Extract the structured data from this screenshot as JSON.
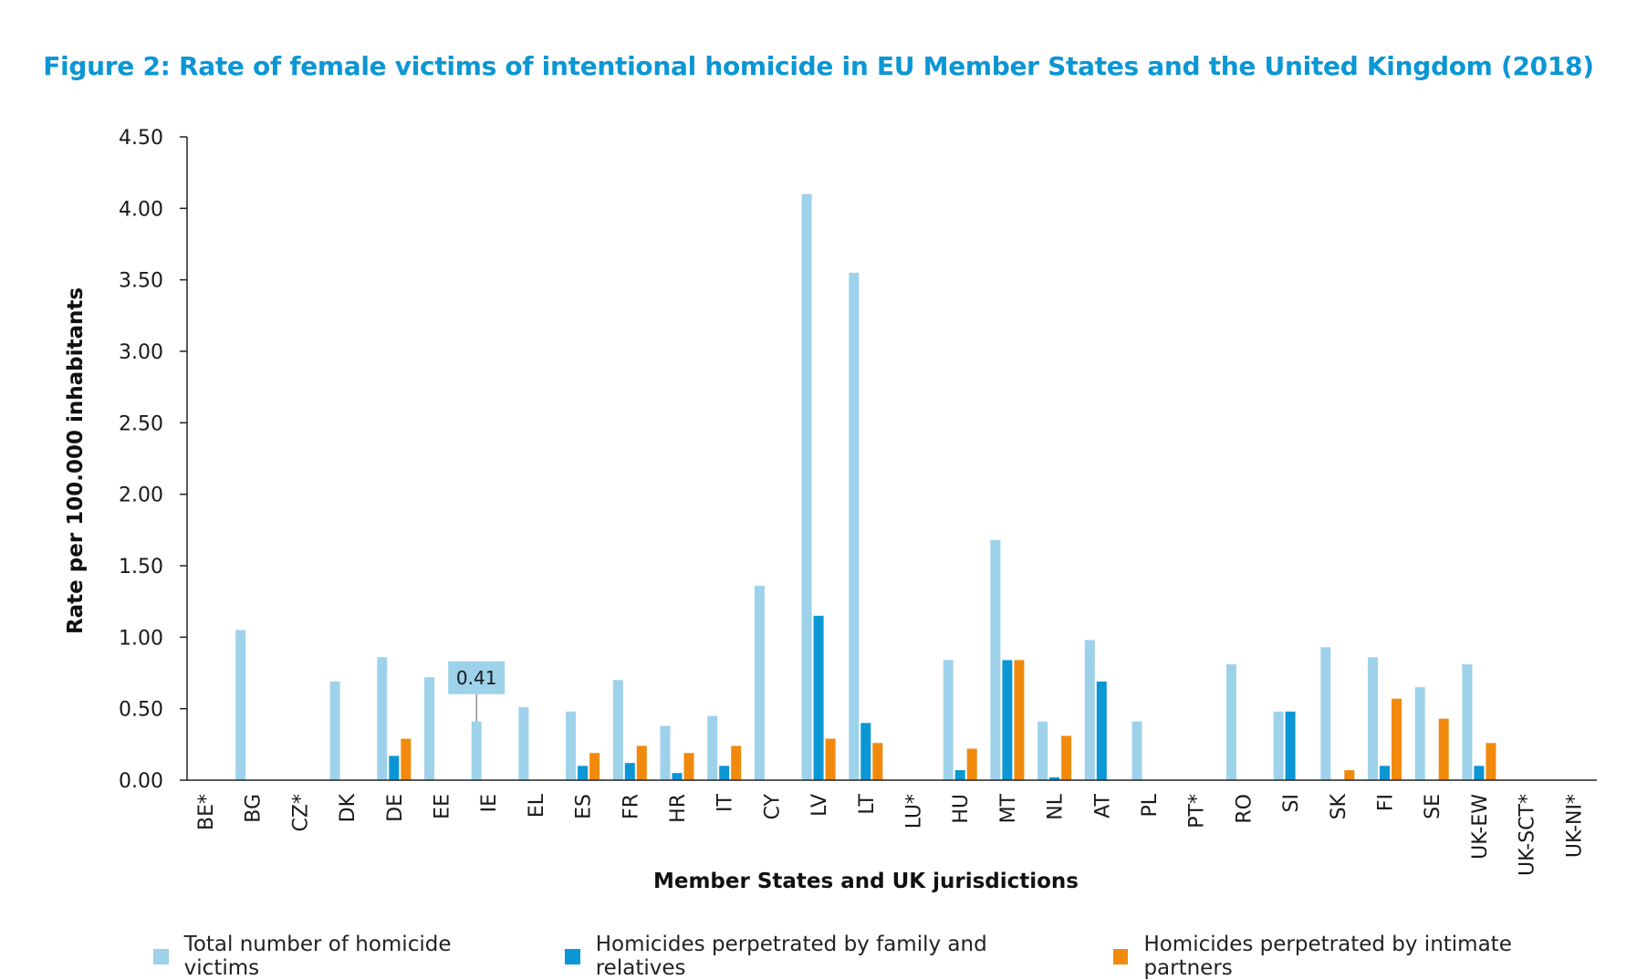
{
  "chart_data": {
    "type": "bar",
    "title": "Figure 2: Rate of female victims of intentional homicide in EU Member States and the United Kingdom (2018)",
    "xlabel": "Member States and UK jurisdictions",
    "ylabel": "Rate per 100.000 inhabitants",
    "ylim": [
      0,
      4.5
    ],
    "yticks": [
      "0.00",
      "0.50",
      "1.00",
      "1.50",
      "2.00",
      "2.50",
      "3.00",
      "3.50",
      "4.00",
      "4.50"
    ],
    "grid": false,
    "legend_position": "bottom",
    "categories": [
      "BE*",
      "BG",
      "CZ*",
      "DK",
      "DE",
      "EE",
      "IE",
      "EL",
      "ES",
      "FR",
      "HR",
      "IT",
      "CY",
      "LV",
      "LT",
      "LU*",
      "HU",
      "MT",
      "NL",
      "AT",
      "PL",
      "PT*",
      "RO",
      "SI",
      "SK",
      "FI",
      "SE",
      "UK-EW",
      "UK-SCT*",
      "UK-NI*"
    ],
    "series": [
      {
        "name": "Total number of homicide victims",
        "color": "#9dd2ea",
        "values": [
          null,
          1.05,
          null,
          0.69,
          0.86,
          0.72,
          0.41,
          0.51,
          0.48,
          0.7,
          0.38,
          0.45,
          1.36,
          4.1,
          3.55,
          null,
          0.84,
          1.68,
          0.41,
          0.98,
          0.41,
          null,
          0.81,
          0.48,
          0.93,
          0.86,
          0.65,
          0.81,
          null,
          null
        ]
      },
      {
        "name": "Homicides perpetrated by family and relatives",
        "color": "#0b96d4",
        "values": [
          null,
          null,
          null,
          null,
          0.17,
          null,
          null,
          null,
          0.1,
          0.12,
          0.05,
          0.1,
          null,
          1.15,
          0.4,
          null,
          0.07,
          0.84,
          0.02,
          0.69,
          null,
          null,
          null,
          0.48,
          null,
          0.1,
          null,
          0.1,
          null,
          null
        ]
      },
      {
        "name": "Homicides perpetrated by intimate partners",
        "color": "#f18a0c",
        "values": [
          null,
          null,
          null,
          null,
          0.29,
          null,
          null,
          null,
          0.19,
          0.24,
          0.19,
          0.24,
          null,
          0.29,
          0.26,
          null,
          0.22,
          0.84,
          0.31,
          null,
          null,
          null,
          null,
          null,
          0.07,
          0.57,
          0.43,
          0.26,
          null,
          null
        ]
      }
    ],
    "annotations": [
      {
        "category": "IE",
        "series": "Total number of homicide victims",
        "text": "0.41"
      }
    ]
  },
  "colors": {
    "title": "#0b96d4",
    "axis": "#222222"
  }
}
